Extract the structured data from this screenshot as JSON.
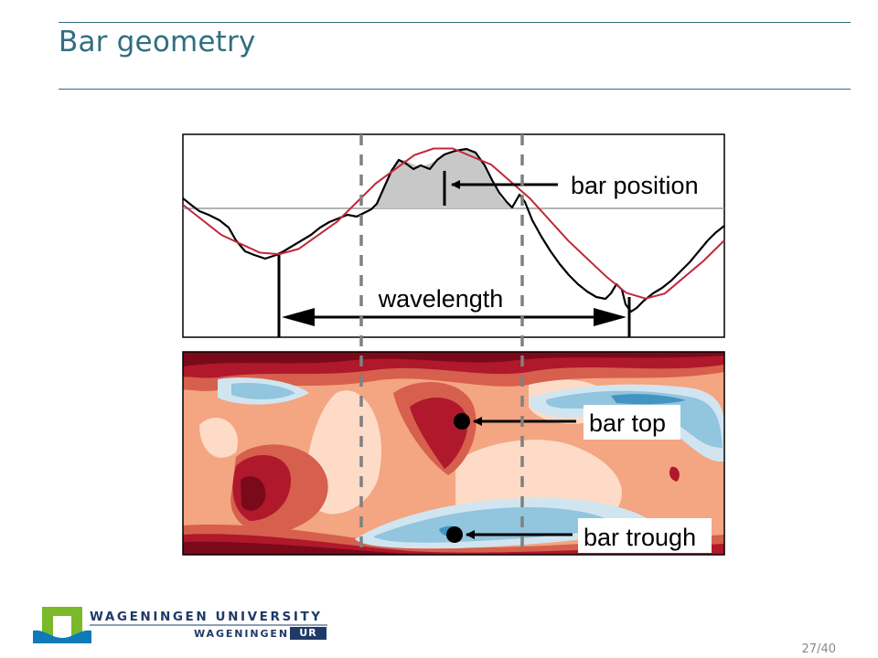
{
  "slide": {
    "title": "Bar geometry",
    "page_number": "27/40"
  },
  "figure": {
    "profile_panel": {
      "labels": {
        "bar_position": "bar position",
        "wavelength": "wavelength"
      },
      "colors": {
        "measured_profile": "#000000",
        "fitted_sine": "#c0283c",
        "bar_fill": "#c8c8c8",
        "mean_line": "#9a9a9a",
        "guide_dashes": "#808080"
      }
    },
    "map_panel": {
      "labels": {
        "bar_top": "bar top",
        "bar_trough": "bar trough"
      },
      "colors": {
        "darkest_red": "#7a0a1a",
        "dark_red": "#b0182b",
        "red": "#d6604d",
        "orange": "#f4a582",
        "light_orange": "#fddbc7",
        "light_blue": "#d1e5f0",
        "blue": "#92c5de",
        "dark_blue": "#4393c3"
      }
    }
  },
  "footer": {
    "university_name": "WAGENINGEN UNIVERSITY",
    "wur_name": "WAGENINGEN",
    "wur_abbrev": "UR",
    "logo_colors": {
      "green": "#7ab929",
      "blue": "#0e7bb8",
      "navy": "#1e3a68"
    }
  }
}
